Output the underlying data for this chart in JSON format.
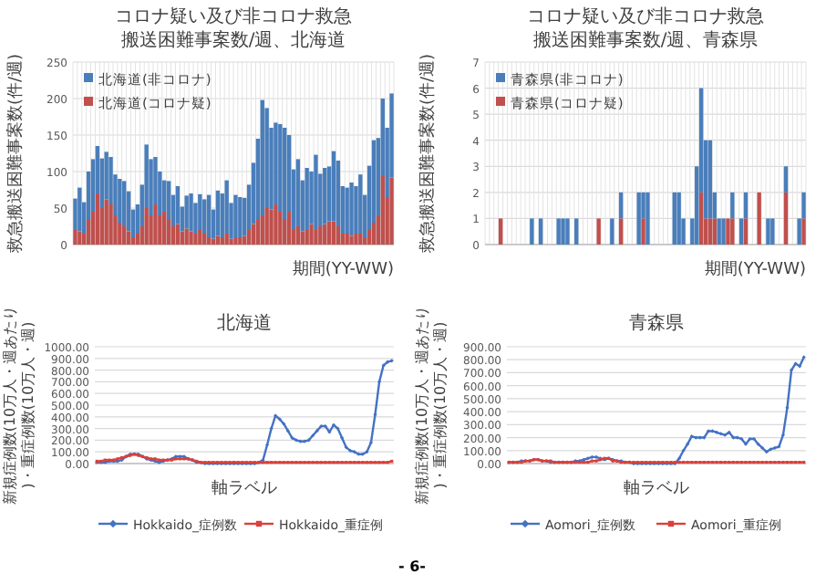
{
  "chart_data": [
    {
      "type": "bar",
      "stacked": true,
      "title": "コロナ疑い及び非コロナ救急搬送困難事案数/週、北海道",
      "ylabel": "救急搬送困難事案数(件/週)",
      "xlabel": "期間(YY-WW)",
      "categories": [
        null,
        null,
        null,
        null,
        null,
        null,
        null,
        null,
        null,
        null,
        null,
        null,
        null,
        null,
        null,
        null,
        null,
        null,
        null,
        null,
        null,
        null,
        null,
        null,
        null,
        null,
        null,
        null,
        null,
        null,
        null,
        null,
        null,
        null,
        null,
        null,
        null,
        null,
        null,
        null,
        null,
        null,
        null,
        null,
        null,
        null,
        null,
        null,
        null,
        null,
        null,
        null,
        null,
        null,
        null,
        null,
        null,
        null,
        null,
        null,
        null,
        null,
        null,
        null,
        null,
        null,
        null,
        null,
        null,
        null,
        null,
        null
      ],
      "series": [
        {
          "name": "北海道(コロナ疑)",
          "color": "#c0504d",
          "values": [
            20,
            18,
            15,
            35,
            45,
            70,
            50,
            62,
            55,
            40,
            30,
            25,
            18,
            10,
            15,
            25,
            50,
            40,
            55,
            40,
            45,
            35,
            25,
            28,
            18,
            22,
            18,
            15,
            20,
            15,
            10,
            8,
            12,
            10,
            15,
            8,
            10,
            10,
            12,
            20,
            28,
            35,
            40,
            50,
            48,
            55,
            45,
            35,
            45,
            20,
            25,
            18,
            20,
            28,
            20,
            25,
            28,
            32,
            32,
            25,
            15,
            15,
            12,
            15,
            15,
            10,
            20,
            30,
            40,
            95,
            65,
            92
          ]
        },
        {
          "name": "北海道(非コロナ)",
          "color": "#4a7ebb",
          "values": [
            43,
            60,
            43,
            65,
            72,
            65,
            68,
            65,
            65,
            56,
            60,
            62,
            55,
            38,
            40,
            57,
            87,
            77,
            65,
            60,
            43,
            52,
            43,
            52,
            34,
            45,
            52,
            42,
            49,
            47,
            58,
            40,
            62,
            60,
            73,
            49,
            58,
            55,
            52,
            62,
            84,
            110,
            158,
            137,
            112,
            112,
            120,
            125,
            105,
            83,
            92,
            70,
            85,
            72,
            103,
            72,
            77,
            75,
            96,
            90,
            65,
            63,
            73,
            65,
            81,
            58,
            88,
            113,
            106,
            105,
            95,
            115
          ]
        }
      ],
      "ylim": [
        0,
        250
      ],
      "yticks": [
        0,
        50,
        100,
        150,
        200,
        250
      ],
      "grid": true,
      "legend": "top left"
    },
    {
      "type": "bar",
      "stacked": true,
      "title": "コロナ疑い及び非コロナ救急搬送困難事案数/週、青森県",
      "ylabel": "救急搬送困難事案数(件/週)",
      "xlabel": "期間(YY-WW)",
      "categories": [
        null,
        null,
        null,
        null,
        null,
        null,
        null,
        null,
        null,
        null,
        null,
        null,
        null,
        null,
        null,
        null,
        null,
        null,
        null,
        null,
        null,
        null,
        null,
        null,
        null,
        null,
        null,
        null,
        null,
        null,
        null,
        null,
        null,
        null,
        null,
        null,
        null,
        null,
        null,
        null,
        null,
        null,
        null,
        null,
        null,
        null,
        null,
        null,
        null,
        null,
        null,
        null,
        null,
        null,
        null,
        null,
        null,
        null,
        null,
        null,
        null,
        null,
        null,
        null,
        null,
        null,
        null,
        null,
        null,
        null,
        null,
        null
      ],
      "series": [
        {
          "name": "青森県(コロナ疑)",
          "color": "#c0504d",
          "values": [
            0,
            0,
            0,
            1,
            0,
            0,
            0,
            0,
            0,
            0,
            0,
            0,
            0,
            0,
            0,
            0,
            0,
            0,
            0,
            0,
            0,
            0,
            0,
            0,
            0,
            1,
            0,
            0,
            0,
            0,
            1,
            0,
            0,
            0,
            0,
            1,
            0,
            0,
            0,
            0,
            0,
            0,
            0,
            0,
            0,
            0,
            0,
            0,
            2,
            1,
            1,
            1,
            0,
            0,
            1,
            1,
            0,
            0,
            1,
            0,
            0,
            2,
            0,
            0,
            0,
            0,
            0,
            2,
            0,
            0,
            0,
            1
          ]
        },
        {
          "name": "青森県(非コロナ)",
          "color": "#4a7ebb",
          "values": [
            0,
            0,
            0,
            0,
            0,
            0,
            0,
            0,
            0,
            0,
            1,
            0,
            1,
            0,
            0,
            0,
            1,
            1,
            1,
            0,
            1,
            0,
            0,
            0,
            0,
            0,
            0,
            0,
            1,
            0,
            1,
            0,
            0,
            0,
            2,
            1,
            2,
            0,
            0,
            0,
            0,
            0,
            2,
            2,
            1,
            0,
            1,
            3,
            4,
            3,
            3,
            1,
            1,
            1,
            0,
            1,
            0,
            1,
            1,
            0,
            0,
            0,
            0,
            1,
            1,
            0,
            0,
            1,
            0,
            0,
            1,
            1
          ]
        }
      ],
      "ylim": [
        0,
        7
      ],
      "yticks": [
        0,
        1,
        2,
        3,
        4,
        5,
        6,
        7
      ],
      "grid": true,
      "legend": "top left"
    },
    {
      "type": "line",
      "title": "北海道",
      "ylabel": "新規症例数(10万人・週あたり)・重症例数(10万人・週)",
      "xlabel": "軸ラベル",
      "categories": [
        null,
        null,
        null,
        null,
        null,
        null,
        null,
        null,
        null,
        null,
        null,
        null,
        null,
        null,
        null,
        null,
        null,
        null,
        null,
        null,
        null,
        null,
        null,
        null,
        null,
        null,
        null,
        null,
        null,
        null,
        null,
        null,
        null,
        null,
        null,
        null,
        null,
        null,
        null,
        null,
        null,
        null,
        null,
        null,
        null,
        null,
        null,
        null,
        null,
        null,
        null,
        null,
        null,
        null,
        null,
        null,
        null,
        null,
        null,
        null,
        null,
        null,
        null,
        null,
        null,
        null,
        null,
        null,
        null,
        null,
        null,
        null
      ],
      "series": [
        {
          "name": "Hokkaido_症例数",
          "color": "#4472c4",
          "marker": "diamond",
          "values": [
            10,
            10,
            10,
            20,
            20,
            20,
            30,
            60,
            80,
            80,
            80,
            60,
            40,
            30,
            20,
            10,
            20,
            30,
            40,
            60,
            60,
            60,
            40,
            30,
            10,
            10,
            0,
            0,
            0,
            0,
            0,
            0,
            0,
            0,
            0,
            0,
            0,
            0,
            0,
            10,
            30,
            160,
            300,
            410,
            380,
            340,
            280,
            220,
            200,
            190,
            190,
            200,
            240,
            280,
            320,
            320,
            270,
            330,
            300,
            220,
            140,
            110,
            100,
            80,
            80,
            100,
            180,
            420,
            700,
            840,
            870,
            880
          ]
        },
        {
          "name": "Hokkaido_重症例",
          "color": "#d9413b",
          "marker": "square",
          "values": [
            20,
            20,
            30,
            30,
            30,
            40,
            50,
            60,
            70,
            80,
            70,
            60,
            50,
            40,
            40,
            30,
            30,
            30,
            30,
            40,
            40,
            40,
            40,
            30,
            20,
            10,
            10,
            10,
            10,
            10,
            10,
            10,
            10,
            10,
            10,
            10,
            10,
            10,
            10,
            10,
            10,
            10,
            10,
            10,
            10,
            10,
            10,
            10,
            10,
            10,
            10,
            10,
            10,
            10,
            10,
            10,
            10,
            10,
            10,
            10,
            10,
            10,
            10,
            10,
            10,
            10,
            10,
            10,
            10,
            10,
            10,
            20
          ]
        }
      ],
      "ylim": [
        0,
        1000
      ],
      "yticks": [
        {
          "value": 0,
          "label": "0.00"
        },
        {
          "value": 100,
          "label": "100.00"
        },
        {
          "value": 200,
          "label": "200.00"
        },
        {
          "value": 300,
          "label": "300.00"
        },
        {
          "value": 400,
          "label": "400.00"
        },
        {
          "value": 500,
          "label": "500.00"
        },
        {
          "value": 600,
          "label": "600.00"
        },
        {
          "value": 700,
          "label": "700.00"
        },
        {
          "value": 800,
          "label": "800.00"
        },
        {
          "value": 900,
          "label": "900.00"
        },
        {
          "value": 1000,
          "label": "1000.00"
        }
      ],
      "grid": "y",
      "legend": "bottom"
    },
    {
      "type": "line",
      "title": "青森県",
      "ylabel": "新規症例数(10万人・週あたり)・重症例数(10万人・週)",
      "xlabel": "軸ラベル",
      "categories": [
        null,
        null,
        null,
        null,
        null,
        null,
        null,
        null,
        null,
        null,
        null,
        null,
        null,
        null,
        null,
        null,
        null,
        null,
        null,
        null,
        null,
        null,
        null,
        null,
        null,
        null,
        null,
        null,
        null,
        null,
        null,
        null,
        null,
        null,
        null,
        null,
        null,
        null,
        null,
        null,
        null,
        null,
        null,
        null,
        null,
        null,
        null,
        null,
        null,
        null,
        null,
        null,
        null,
        null,
        null,
        null,
        null,
        null,
        null,
        null,
        null,
        null,
        null,
        null,
        null,
        null,
        null,
        null,
        null,
        null,
        null,
        null
      ],
      "series": [
        {
          "name": "Aomori_症例数",
          "color": "#4472c4",
          "marker": "diamond",
          "values": [
            10,
            10,
            10,
            20,
            20,
            20,
            30,
            30,
            20,
            20,
            10,
            10,
            10,
            10,
            10,
            10,
            20,
            20,
            30,
            40,
            50,
            50,
            40,
            30,
            40,
            30,
            20,
            20,
            10,
            10,
            0,
            0,
            0,
            0,
            0,
            0,
            0,
            0,
            0,
            0,
            0,
            40,
            100,
            150,
            210,
            200,
            200,
            200,
            250,
            250,
            240,
            230,
            220,
            240,
            200,
            200,
            190,
            150,
            190,
            190,
            150,
            120,
            90,
            110,
            120,
            130,
            220,
            430,
            720,
            770,
            750,
            820
          ]
        },
        {
          "name": "Aomori_重症例",
          "color": "#d9413b",
          "marker": "square",
          "values": [
            10,
            10,
            10,
            10,
            20,
            20,
            30,
            30,
            20,
            20,
            20,
            10,
            10,
            10,
            10,
            10,
            10,
            10,
            10,
            10,
            20,
            20,
            30,
            40,
            40,
            20,
            20,
            10,
            10,
            10,
            10,
            10,
            10,
            10,
            10,
            10,
            10,
            10,
            10,
            10,
            10,
            10,
            10,
            10,
            10,
            10,
            10,
            10,
            10,
            10,
            10,
            10,
            10,
            10,
            10,
            10,
            10,
            10,
            10,
            10,
            10,
            10,
            10,
            10,
            10,
            10,
            10,
            10,
            10,
            10,
            10,
            10
          ]
        }
      ],
      "ylim": [
        0,
        900
      ],
      "yticks": [
        {
          "value": 0,
          "label": "0.00"
        },
        {
          "value": 100,
          "label": "100.00"
        },
        {
          "value": 200,
          "label": "200.00"
        },
        {
          "value": 300,
          "label": "300.00"
        },
        {
          "value": 400,
          "label": "400.00"
        },
        {
          "value": 500,
          "label": "500.00"
        },
        {
          "value": 600,
          "label": "600.00"
        },
        {
          "value": 700,
          "label": "700.00"
        },
        {
          "value": 800,
          "label": "800.00"
        },
        {
          "value": 900,
          "label": "900.00"
        }
      ],
      "grid": "y",
      "legend": "bottom",
      "annotations": [
        "- 6-"
      ]
    }
  ]
}
